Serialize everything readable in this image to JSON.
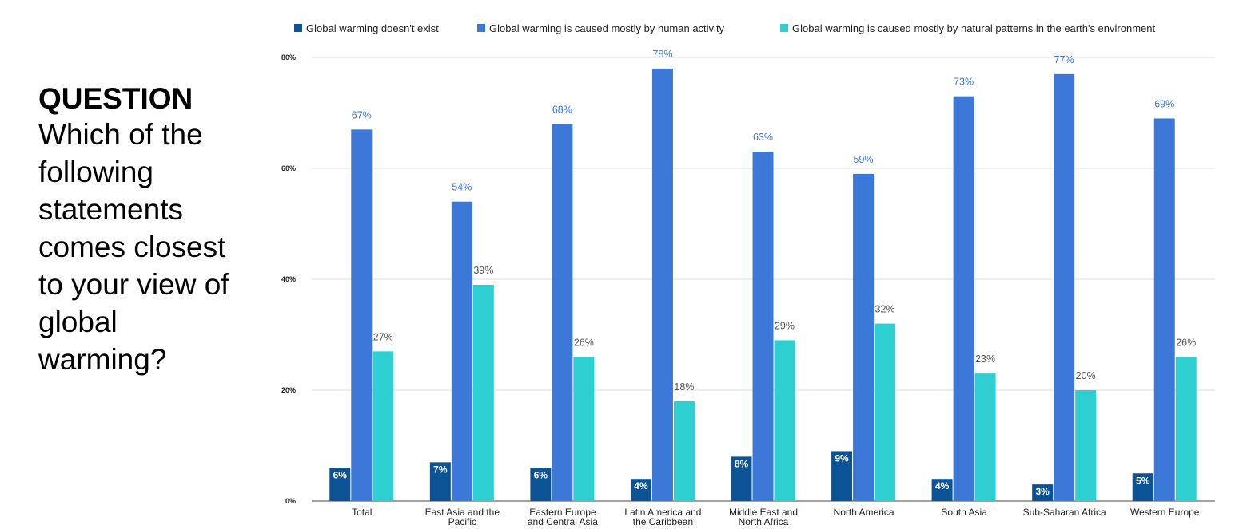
{
  "question": {
    "heading": "QUESTION",
    "text": "Which of the following statements comes closest to your view of global warming?"
  },
  "chart_data": {
    "type": "bar",
    "title": "",
    "xlabel": "",
    "ylabel": "",
    "ylim": [
      0,
      80
    ],
    "yticks": [
      0,
      20,
      40,
      60,
      80
    ],
    "ytick_labels": [
      "0%",
      "20%",
      "40%",
      "60%",
      "80%"
    ],
    "grid": true,
    "legend_position": "top",
    "categories": [
      [
        "Total"
      ],
      [
        "East Asia and the",
        "Pacific"
      ],
      [
        "Eastern Europe",
        "and Central Asia"
      ],
      [
        "Latin America and",
        "the Caribbean"
      ],
      [
        "Middle East and",
        "North Africa"
      ],
      [
        "North America"
      ],
      [
        "South Asia"
      ],
      [
        "Sub-Saharan Africa"
      ],
      [
        "Western Europe"
      ]
    ],
    "series": [
      {
        "name": "Global warming doesn't exist",
        "color": "#0b5394",
        "label_color": "#ffffff",
        "label_position": "inside",
        "values": [
          6,
          7,
          6,
          4,
          8,
          9,
          4,
          3,
          5
        ],
        "labels": [
          "6%",
          "7%",
          "6%",
          "4%",
          "8%",
          "9%",
          "4%",
          "3%",
          "5%"
        ]
      },
      {
        "name": "Global warming is caused mostly by human activity",
        "color": "#3c78d8",
        "label_color": "#3c78d8",
        "label_position": "above",
        "values": [
          67,
          54,
          68,
          78,
          63,
          59,
          73,
          77,
          69
        ],
        "labels": [
          "67%",
          "54%",
          "68%",
          "78%",
          "63%",
          "59%",
          "73%",
          "77%",
          "69%"
        ]
      },
      {
        "name": "Global warming is caused mostly by natural patterns in the earth's environment",
        "color": "#2ecfd0",
        "label_color": "#555555",
        "label_position": "above",
        "values": [
          27,
          39,
          26,
          18,
          29,
          32,
          23,
          20,
          26
        ],
        "labels": [
          "27%",
          "39%",
          "26%",
          "18%",
          "29%",
          "32%",
          "23%",
          "20%",
          "26%"
        ]
      }
    ]
  }
}
